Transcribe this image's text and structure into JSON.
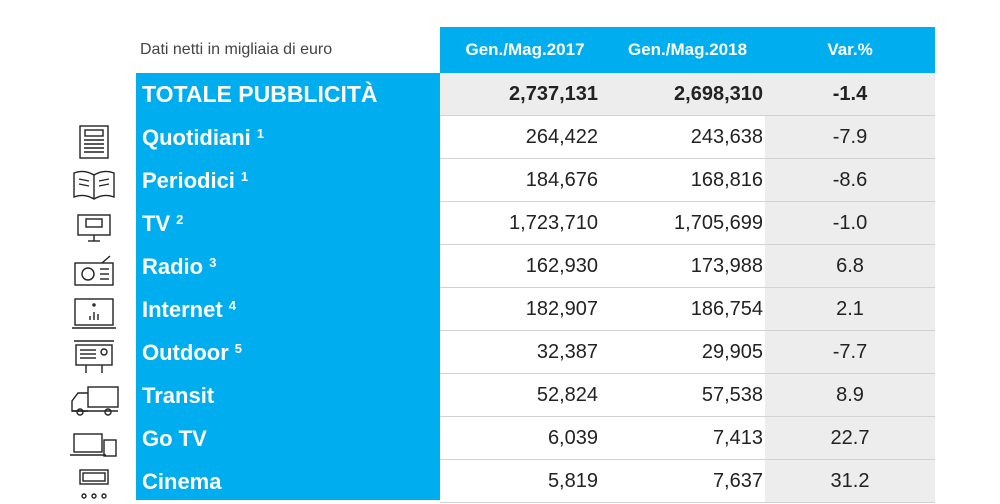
{
  "header": {
    "caption": "Dati netti in migliaia di euro",
    "col1": "Gen./Mag.2017",
    "col2": "Gen./Mag.2018",
    "col3": "Var.%"
  },
  "colors": {
    "accent": "#00aeef",
    "shade": "#ededed"
  },
  "total": {
    "label": "TOTALE PUBBLICITÀ",
    "v2017": "2,737,131",
    "v2018": "2,698,310",
    "var": "-1.4"
  },
  "rows": [
    {
      "label": "Quotidiani",
      "note": "1",
      "icon": "newspaper-icon",
      "v2017": "264,422",
      "v2018": "243,638",
      "var": "-7.9"
    },
    {
      "label": "Periodici",
      "note": "1",
      "icon": "magazine-icon",
      "v2017": "184,676",
      "v2018": "168,816",
      "var": "-8.6"
    },
    {
      "label": "TV",
      "note": "2",
      "icon": "tv-icon",
      "v2017": "1,723,710",
      "v2018": "1,705,699",
      "var": "-1.0"
    },
    {
      "label": "Radio",
      "note": "3",
      "icon": "radio-icon",
      "v2017": "162,930",
      "v2018": "173,988",
      "var": "6.8"
    },
    {
      "label": "Internet",
      "note": "4",
      "icon": "monitor-chart-icon",
      "v2017": "182,907",
      "v2018": "186,754",
      "var": "2.1"
    },
    {
      "label": "Outdoor",
      "note": "5",
      "icon": "billboard-icon",
      "v2017": "32,387",
      "v2018": "29,905",
      "var": "-7.7"
    },
    {
      "label": "Transit",
      "note": "",
      "icon": "truck-icon",
      "v2017": "52,824",
      "v2018": "57,538",
      "var": "8.9"
    },
    {
      "label": "Go TV",
      "note": "",
      "icon": "devices-icon",
      "v2017": "6,039",
      "v2018": "7,413",
      "var": "22.7"
    },
    {
      "label": "Cinema",
      "note": "",
      "icon": "cinema-icon",
      "v2017": "5,819",
      "v2018": "7,637",
      "var": "31.2"
    }
  ]
}
